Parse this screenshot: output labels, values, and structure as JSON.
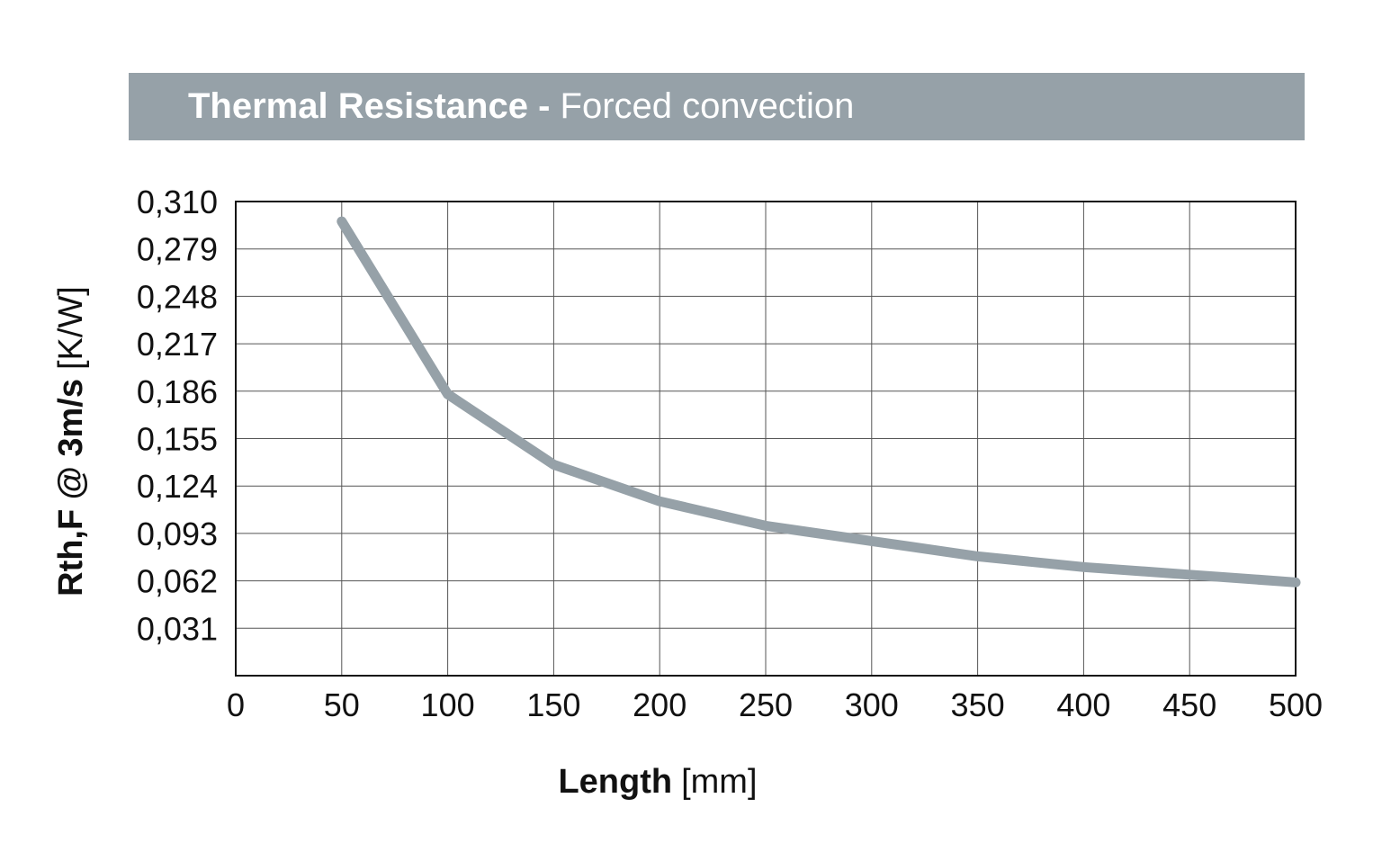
{
  "header": {
    "title_bold": "Thermal Resistance -",
    "title_regular": "Forced convection",
    "banner_color": "#96a1a8"
  },
  "chart_data": {
    "type": "line",
    "title": "Thermal Resistance - Forced convection",
    "xlabel_bold": "Length",
    "xlabel_unit": "[mm]",
    "ylabel_bold": "Rth,F @ 3m/s",
    "ylabel_unit": "[K/W]",
    "xlim": [
      0,
      500
    ],
    "ylim": [
      0,
      0.31
    ],
    "x_ticks": [
      "0",
      "50",
      "100",
      "150",
      "200",
      "250",
      "300",
      "350",
      "400",
      "450",
      "500"
    ],
    "y_ticks": [
      "0,310",
      "0,279",
      "0,248",
      "0,217",
      "0,186",
      "0,155",
      "0,124",
      "0,093",
      "0,062",
      "0,031"
    ],
    "y_tick_values": [
      0.31,
      0.279,
      0.248,
      0.217,
      0.186,
      0.155,
      0.124,
      0.093,
      0.062,
      0.031
    ],
    "grid": true,
    "legend": "none",
    "series": [
      {
        "color": "#96a1a8",
        "x": [
          50,
          100,
          150,
          200,
          250,
          300,
          350,
          400,
          450,
          500
        ],
        "y": [
          0.297,
          0.184,
          0.138,
          0.114,
          0.098,
          0.088,
          0.078,
          0.071,
          0.066,
          0.061
        ]
      }
    ]
  }
}
